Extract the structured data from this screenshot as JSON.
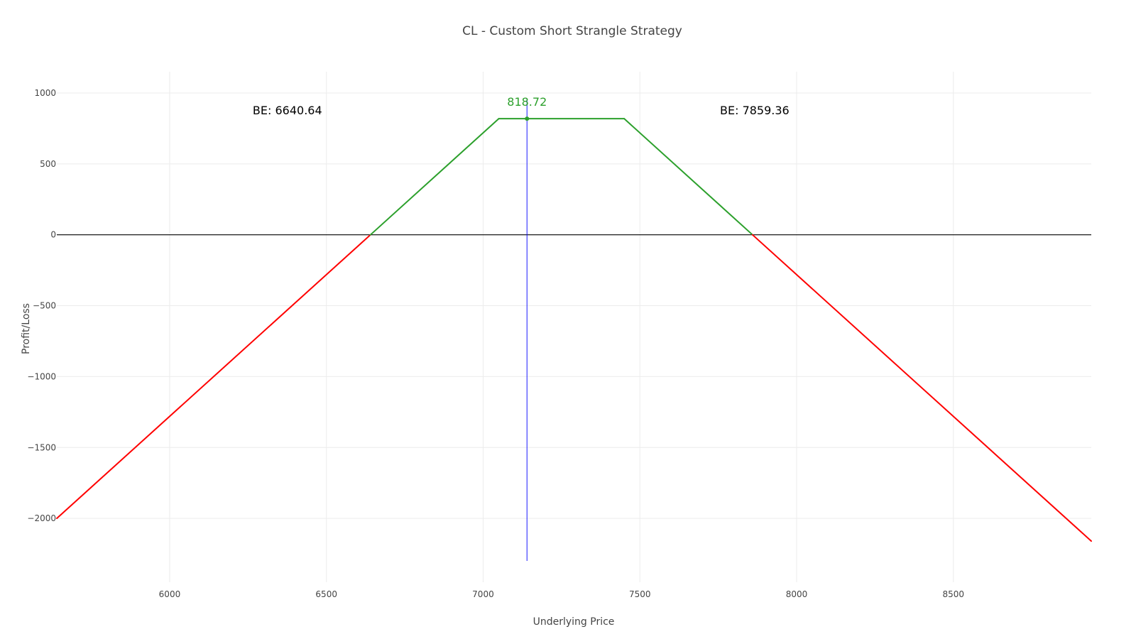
{
  "chart_data": {
    "type": "line",
    "title": "CL - Custom Short Strangle Strategy",
    "xlabel": "Underlying Price",
    "ylabel": "Profit/Loss",
    "xlim": [
      5640,
      8940
    ],
    "ylim": [
      -2450,
      1150
    ],
    "xticks": [
      6000,
      6500,
      7000,
      7500,
      8000,
      8500
    ],
    "yticks": [
      1000,
      500,
      0,
      -500,
      -1000,
      -1500,
      -2000
    ],
    "ytick_labels": [
      "1000",
      "500",
      "0",
      "−500",
      "−1000",
      "−1500",
      "−2000"
    ],
    "grid": true,
    "colors": {
      "profit": "#2ca02c",
      "loss": "#ff0000",
      "current": "#0000ff",
      "zero": "#000000"
    },
    "series": [
      {
        "x": [
          5640,
          6640.64,
          7050,
          7450,
          7859.36,
          8940
        ],
        "y": [
          -2000,
          0,
          818.72,
          818.72,
          0,
          -2160
        ]
      }
    ],
    "current_price": {
      "x": 7140,
      "y_range": [
        -2300,
        960
      ]
    },
    "peak_marker": {
      "x": 7140,
      "y": 818.72
    },
    "annotations": {
      "be_low": {
        "text": "BE: 6640.64",
        "x": 6640.64,
        "y": 880
      },
      "be_high": {
        "text": "BE: 7859.36",
        "x": 7859.36,
        "y": 880
      },
      "peak": {
        "text": "818.72",
        "x": 7140,
        "y": 960
      }
    }
  }
}
